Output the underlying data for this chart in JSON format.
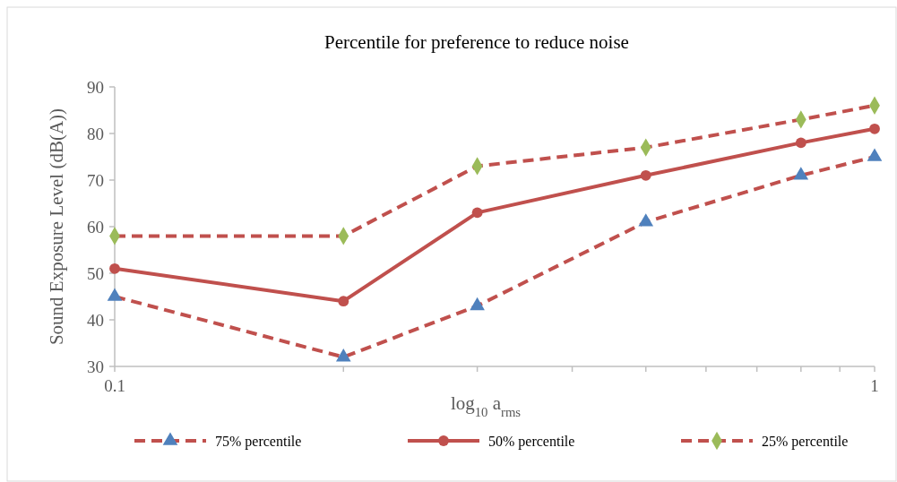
{
  "chart_data": {
    "type": "line",
    "title": "Percentile for preference to reduce noise",
    "xlabel": "log$_{10}$ a$_{rms}$",
    "ylabel": "Sound Exposure Level (dB(A))",
    "x": [
      0.1,
      0.2,
      0.3,
      0.5,
      0.8,
      1
    ],
    "log": "x",
    "xlim": [
      0.1,
      1
    ],
    "xticks": [
      0.1,
      {
        "value": 0.2,
        "label": null
      },
      {
        "value": 0.3,
        "label": null
      },
      {
        "value": 0.4,
        "label": null
      },
      {
        "value": 0.5,
        "label": null
      },
      {
        "value": 0.6,
        "label": null
      },
      {
        "value": 0.7,
        "label": null
      },
      {
        "value": 0.8,
        "label": null
      },
      {
        "value": 0.9,
        "label": null
      },
      1
    ],
    "ylim": [
      30,
      90
    ],
    "yticks": [
      30,
      40,
      50,
      60,
      70,
      80,
      90
    ],
    "grid": false,
    "legend": "bottom",
    "series": [
      {
        "name": "75% percentile",
        "color": "#c0504d",
        "colors": [
          "#4f81bd",
          "#4f81bd",
          "#4f81bd",
          "#4f81bd",
          "#4f81bd",
          "#4f81bd"
        ],
        "marker": "triangle",
        "line_style": "dashed",
        "values": [
          45,
          32,
          43,
          61,
          71,
          75
        ]
      },
      {
        "name": "50% percentile",
        "color": "#c0504d",
        "colors": [
          "#c0504d",
          "#c0504d",
          "#c0504d",
          "#c0504d",
          "#c0504d",
          "#c0504d"
        ],
        "marker": "circle",
        "line_style": "solid",
        "values": [
          51,
          44,
          63,
          71,
          78,
          81
        ]
      },
      {
        "name": "25% percentile",
        "color": "#c0504d",
        "colors": [
          "#9bbb59",
          "#9bbb59",
          "#9bbb59",
          "#9bbb59",
          "#9bbb59",
          "#9bbb59"
        ],
        "marker": "diamond",
        "line_style": "dashed",
        "values": [
          58,
          58,
          73,
          77,
          83,
          86
        ]
      }
    ]
  }
}
